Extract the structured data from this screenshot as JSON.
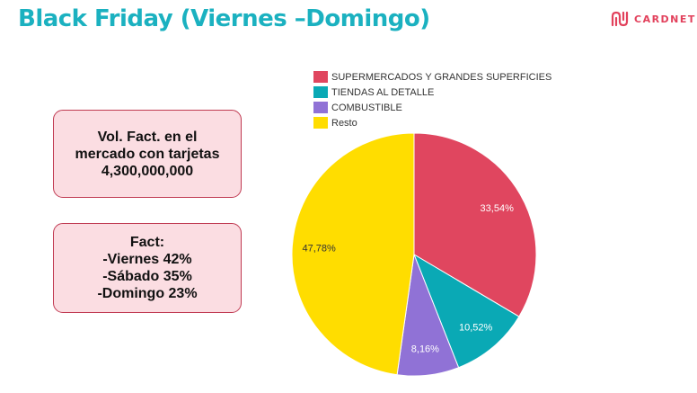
{
  "header": {
    "title": "Black Friday (Viernes –Domingo)",
    "logo_text": "CARDNET"
  },
  "info_boxes": [
    {
      "lines": [
        "Vol. Fact. en el",
        "mercado con tarjetas",
        "4,300,000,000"
      ]
    },
    {
      "lines": [
        "Fact:",
        "-Viernes 42%",
        "-Sábado 35%",
        "-Domingo 23%"
      ]
    }
  ],
  "chart_data": {
    "type": "pie",
    "legend_position": "top",
    "slices": [
      {
        "name": "SUPERMERCADOS Y GRANDES SUPERFICIES",
        "value": 33.54,
        "label": "33,54%",
        "color": "#e0465f"
      },
      {
        "name": "TIENDAS AL DETALLE",
        "value": 10.52,
        "label": "10,52%",
        "color": "#0aa9b5"
      },
      {
        "name": "COMBUSTIBLE",
        "value": 8.16,
        "label": "8,16%",
        "color": "#9072d6"
      },
      {
        "name": "Resto",
        "value": 47.78,
        "label": "47,78%",
        "color": "#ffdd00"
      }
    ]
  },
  "colors": {
    "title": "#1bb1c0",
    "brand": "#e2415c",
    "box_fill": "#fbdde2",
    "box_border": "#c03a52"
  }
}
